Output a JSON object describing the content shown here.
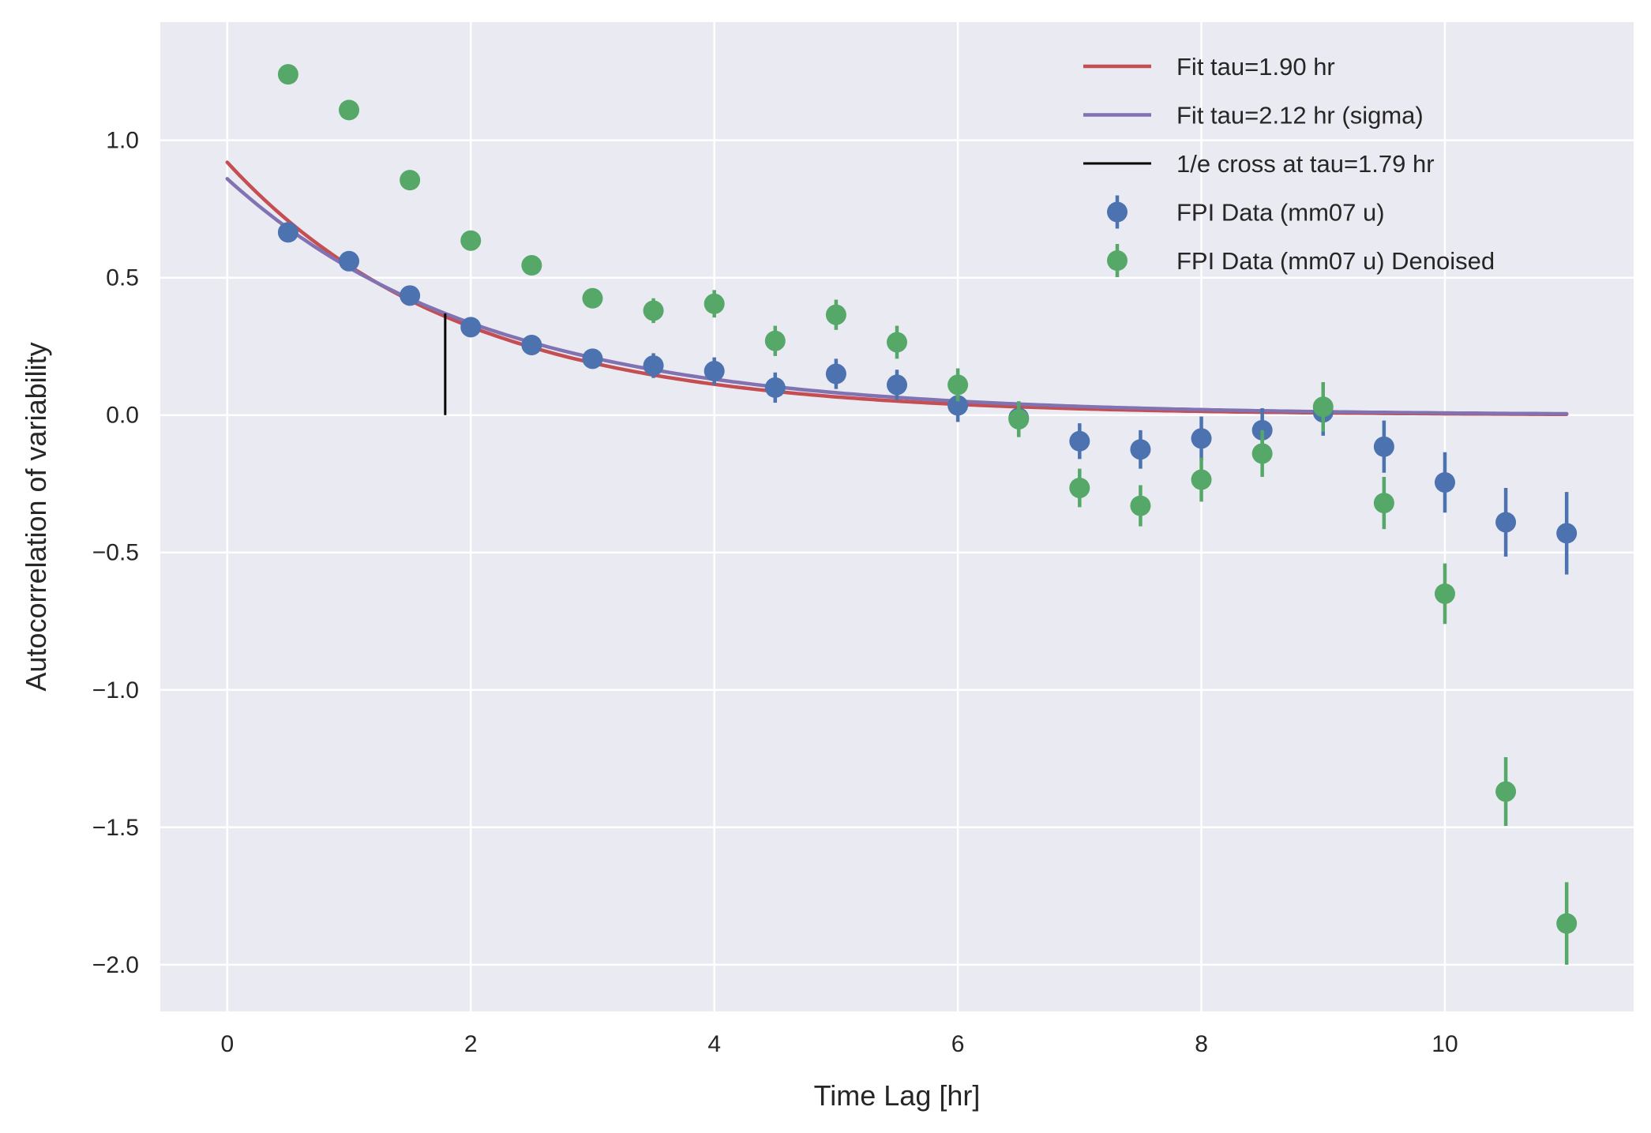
{
  "chart_data": {
    "type": "scatter",
    "xlabel": "Time Lag [hr]",
    "ylabel": "Autocorrelation of variability",
    "xlim": [
      -0.55,
      11.55
    ],
    "ylim": [
      -2.17,
      1.43
    ],
    "xticks": [
      0,
      2,
      4,
      6,
      8,
      10
    ],
    "xtick_labels": [
      "0",
      "2",
      "4",
      "6",
      "8",
      "10"
    ],
    "yticks": [
      1.0,
      0.5,
      0.0,
      -0.5,
      -1.0,
      -1.5,
      -2.0
    ],
    "ytick_labels": [
      "1.0",
      "0.5",
      "0.0",
      "−0.5",
      "−1.0",
      "−1.5",
      "−2.0"
    ],
    "grid": true,
    "legend_position": "top-right",
    "series": [
      {
        "name": "Fit tau=1.90 hr",
        "kind": "line",
        "color": "#c44e52",
        "model": {
          "amplitude": 0.92,
          "tau": 1.9,
          "x_min": 0,
          "x_max": 11
        }
      },
      {
        "name": "Fit tau=2.12 hr (sigma)",
        "kind": "line",
        "color": "#8172b2",
        "model": {
          "amplitude": 0.86,
          "tau": 2.12,
          "x_min": 0,
          "x_max": 11
        }
      },
      {
        "name": "1/e cross at tau=1.79 hr",
        "kind": "vline",
        "color": "#000000",
        "x": 1.79,
        "y_range": [
          0.0,
          0.37
        ]
      },
      {
        "name": "FPI Data (mm07 u)",
        "kind": "errorbar",
        "color": "#4c72b0",
        "x": [
          0.5,
          1.0,
          1.5,
          2.0,
          2.5,
          3.0,
          3.5,
          4.0,
          4.5,
          5.0,
          5.5,
          6.0,
          6.5,
          7.0,
          7.5,
          8.0,
          8.5,
          9.0,
          9.5,
          10.0,
          10.5,
          11.0
        ],
        "y": [
          0.665,
          0.56,
          0.435,
          0.32,
          0.255,
          0.205,
          0.18,
          0.16,
          0.1,
          0.15,
          0.11,
          0.035,
          -0.01,
          -0.095,
          -0.125,
          -0.085,
          -0.055,
          0.01,
          -0.115,
          -0.245,
          -0.39,
          -0.43
        ],
        "yerr": [
          0.01,
          0.01,
          0.01,
          0.02,
          0.02,
          0.02,
          0.045,
          0.05,
          0.055,
          0.055,
          0.055,
          0.06,
          0.06,
          0.065,
          0.07,
          0.08,
          0.08,
          0.085,
          0.095,
          0.11,
          0.125,
          0.15
        ]
      },
      {
        "name": "FPI Data (mm07 u) Denoised",
        "kind": "errorbar",
        "color": "#55a868",
        "x": [
          0.5,
          1.0,
          1.5,
          2.0,
          2.5,
          3.0,
          3.5,
          4.0,
          4.5,
          5.0,
          5.5,
          6.0,
          6.5,
          7.0,
          7.5,
          8.0,
          8.5,
          9.0,
          9.5,
          10.0,
          10.5,
          11.0
        ],
        "y": [
          1.24,
          1.11,
          0.855,
          0.635,
          0.545,
          0.425,
          0.38,
          0.405,
          0.27,
          0.365,
          0.265,
          0.11,
          -0.015,
          -0.265,
          -0.33,
          -0.235,
          -0.14,
          0.03,
          -0.32,
          -0.65,
          -1.37,
          -1.85
        ],
        "yerr": [
          0.01,
          0.01,
          0.01,
          0.01,
          0.01,
          0.035,
          0.045,
          0.05,
          0.055,
          0.055,
          0.06,
          0.06,
          0.065,
          0.07,
          0.075,
          0.08,
          0.085,
          0.09,
          0.095,
          0.11,
          0.125,
          0.15
        ]
      }
    ]
  }
}
